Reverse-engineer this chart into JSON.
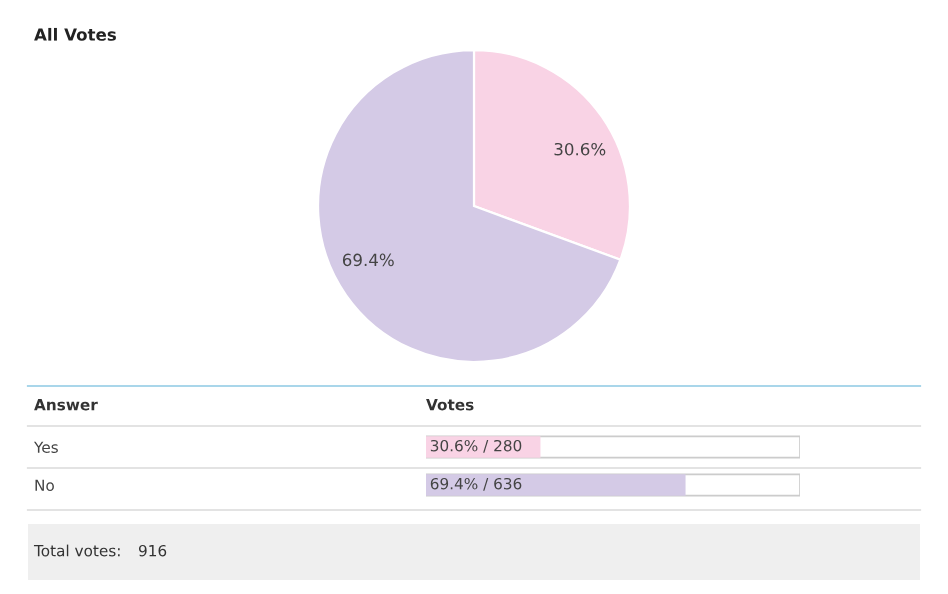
{
  "chart_data": [
    {
      "type": "pie",
      "title": "All Votes",
      "categories": [
        null,
        null
      ],
      "values": [
        30.6,
        69.4
      ],
      "colors": [
        "#f9d3e5",
        "#d4cae6"
      ],
      "value_labels": [
        "30.6%",
        "69.4%"
      ],
      "legend": false
    },
    {
      "type": "bar",
      "orientation": "horizontal",
      "categories": [
        "Yes",
        "No"
      ],
      "values": [
        30.6,
        69.4
      ],
      "colors": [
        "#f9d3e5",
        "#d4cae6"
      ],
      "value_labels": [
        "30.6% / 280",
        "69.4% / 636"
      ],
      "xlim": [
        0,
        100
      ],
      "tick_labels": "y",
      "grid": false,
      "annotations": [
        "Answer",
        "Votes",
        "Total votes:",
        "916"
      ]
    }
  ]
}
